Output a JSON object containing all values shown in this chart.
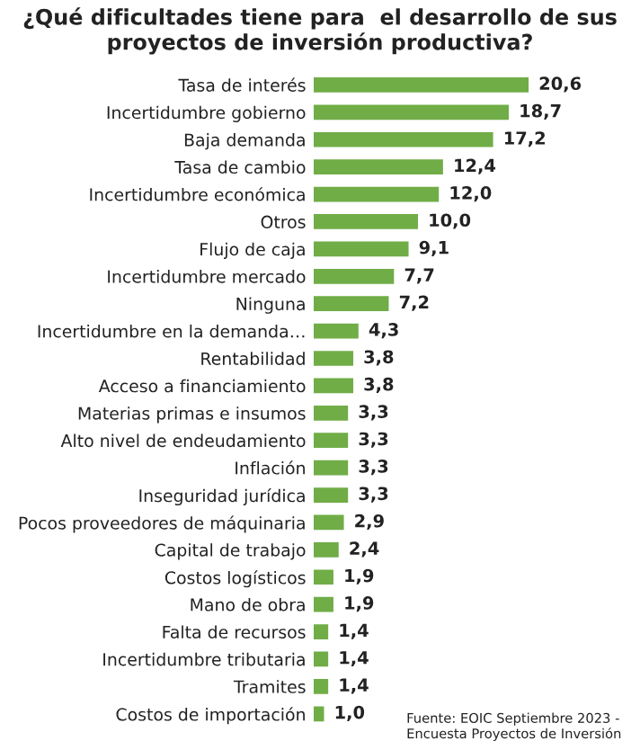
{
  "chart_data": {
    "type": "bar",
    "orientation": "horizontal",
    "title": "¿Qué dificultades tiene para  el desarrollo de sus proyectos de inversión productiva?",
    "categories": [
      "Tasa de interés",
      "Incertidumbre gobierno",
      "Baja demanda",
      "Tasa de cambio",
      "Incertidumbre económica",
      "Otros",
      "Flujo de caja",
      "Incertidumbre mercado",
      "Ninguna",
      "Incertidumbre en la demanda…",
      "Rentabilidad",
      "Acceso a financiamiento",
      "Materias primas e insumos",
      "Alto nivel de endeudamiento",
      "Inflación",
      "Inseguridad jurídica",
      "Pocos proveedores de máquinaria",
      "Capital de trabajo",
      "Costos logísticos",
      "Mano de obra",
      "Falta de recursos",
      "Incertidumbre tributaria",
      "Tramites",
      "Costos de importación"
    ],
    "values": [
      20.6,
      18.7,
      17.2,
      12.4,
      12.0,
      10.0,
      9.1,
      7.7,
      7.2,
      4.3,
      3.8,
      3.8,
      3.3,
      3.3,
      3.3,
      3.3,
      2.9,
      2.4,
      1.9,
      1.9,
      1.4,
      1.4,
      1.4,
      1.0
    ],
    "value_labels": [
      "20,6",
      "18,7",
      "17,2",
      "12,4",
      "12,0",
      "10,0",
      "9,1",
      "7,7",
      "7,2",
      "4,3",
      "3,8",
      "3,8",
      "3,3",
      "3,3",
      "3,3",
      "3,3",
      "2,9",
      "2,4",
      "1,9",
      "1,9",
      "1,4",
      "1,4",
      "1,4",
      "1,0"
    ],
    "color": "#70ad47",
    "annotations": [
      "Fuente: EOIC Septiembre 2023 -\nEncuesta Proyectos de Inversión"
    ]
  }
}
